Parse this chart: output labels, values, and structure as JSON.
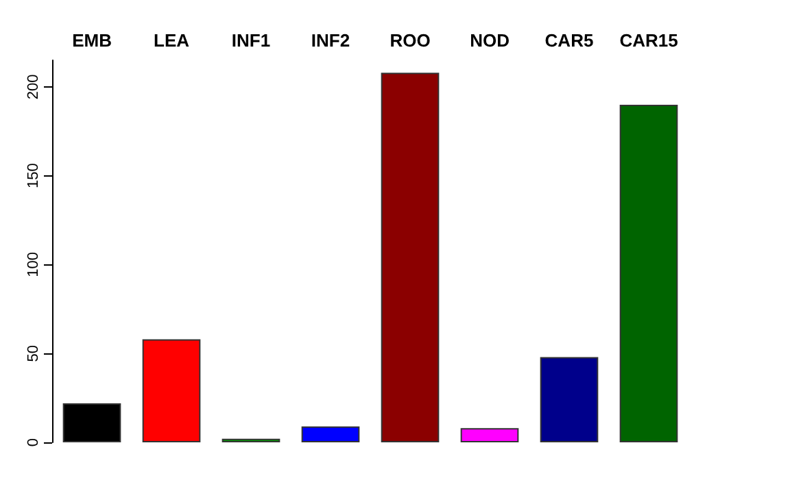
{
  "chart_data": {
    "type": "bar",
    "categories": [
      "EMB",
      "LEA",
      "INF1",
      "INF2",
      "ROO",
      "NOD",
      "CAR5",
      "CAR15"
    ],
    "values": [
      22,
      58,
      2,
      9,
      208,
      8,
      48,
      190
    ],
    "colors": [
      "#000000",
      "#ff0000",
      "#009900",
      "#0000ff",
      "#8b0000",
      "#ff00ff",
      "#00008b",
      "#006400"
    ],
    "ylim": [
      0,
      215
    ],
    "yticks": [
      0,
      50,
      100,
      150,
      200
    ],
    "grid": false
  }
}
